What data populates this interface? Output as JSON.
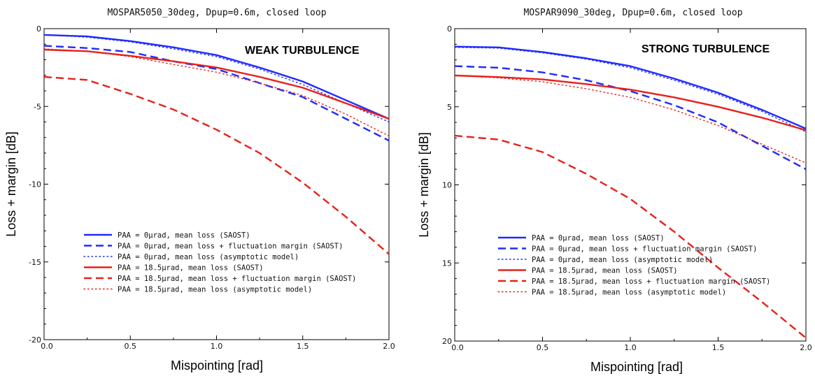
{
  "chart_data": [
    {
      "type": "line",
      "title": "MOSPAR5050_30deg, Dpup=0.6m,  closed loop",
      "xlabel": "Mispointing [rad]",
      "ylabel": "Loss + margin [dB]",
      "annotation": "WEAK TURBULENCE",
      "xlim": [
        0,
        2
      ],
      "ylim": [
        -20,
        0
      ],
      "xticks": [
        "0.0",
        "0.5",
        "1.0",
        "1.5",
        "2.0"
      ],
      "yticks": [
        "0",
        "-5",
        "-10",
        "-15",
        "-20"
      ],
      "grid": false,
      "legend_position": "lower-left",
      "x": [
        0,
        0.25,
        0.5,
        0.75,
        1.0,
        1.25,
        1.5,
        1.75,
        2.0
      ],
      "series": [
        {
          "name": "PAA = 0µrad, mean loss (SAOST)",
          "color": "#1f2bff",
          "style": "solid",
          "values": [
            -0.4,
            -0.5,
            -0.8,
            -1.2,
            -1.7,
            -2.5,
            -3.4,
            -4.6,
            -5.8
          ]
        },
        {
          "name": "PAA = 0µrad, mean loss + fluctuation margin (SAOST)",
          "color": "#1f2bff",
          "style": "dashed",
          "values": [
            -1.1,
            -1.25,
            -1.5,
            -2.1,
            -2.6,
            -3.5,
            -4.4,
            -5.8,
            -7.2
          ]
        },
        {
          "name": "PAA = 0µrad, mean loss (asymptotic model)",
          "color": "#1f2bff",
          "style": "dotted",
          "values": [
            -0.4,
            -0.55,
            -0.85,
            -1.3,
            -1.8,
            -2.6,
            -3.6,
            -4.8,
            -6.0
          ]
        },
        {
          "name": "PAA = 18.5µrad, mean loss (SAOST)",
          "color": "#e8201a",
          "style": "solid",
          "values": [
            -1.35,
            -1.45,
            -1.75,
            -2.1,
            -2.5,
            -3.1,
            -3.8,
            -4.8,
            -5.8
          ]
        },
        {
          "name": "PAA = 18.5µrad, mean loss + fluctuation margin (SAOST)",
          "color": "#e8201a",
          "style": "dashed",
          "values": [
            -3.1,
            -3.3,
            -4.2,
            -5.2,
            -6.5,
            -8.0,
            -9.9,
            -12.1,
            -14.5
          ]
        },
        {
          "name": "PAA = 18.5µrad, mean loss (asymptotic model)",
          "color": "#e8201a",
          "style": "dotted",
          "values": [
            -1.3,
            -1.45,
            -1.8,
            -2.3,
            -2.8,
            -3.5,
            -4.3,
            -5.5,
            -6.9
          ]
        }
      ]
    },
    {
      "type": "line",
      "title": "MOSPAR9090_30deg, Dpup=0.6m,  closed loop",
      "xlabel": "Mispointing [rad]",
      "ylabel": "Loss + margin [dB]",
      "annotation": "STRONG TURBULENCE",
      "xlim": [
        0,
        2
      ],
      "ylim": [
        -20,
        0
      ],
      "xticks": [
        "0.0",
        "0.5",
        "1.0",
        "1.5",
        "2.0"
      ],
      "yticks": [
        "0",
        "5",
        "10",
        "15",
        "20"
      ],
      "grid": false,
      "legend_position": "lower-left",
      "x": [
        0,
        0.25,
        0.5,
        0.75,
        1.0,
        1.25,
        1.5,
        1.75,
        2.0
      ],
      "series": [
        {
          "name": "PAA = 0µrad, mean loss (SAOST)",
          "color": "#1f2bff",
          "style": "solid",
          "values": [
            -1.15,
            -1.2,
            -1.5,
            -1.9,
            -2.4,
            -3.2,
            -4.1,
            -5.2,
            -6.4
          ]
        },
        {
          "name": "PAA = 0µrad, mean loss + fluctuation margin (SAOST)",
          "color": "#1f2bff",
          "style": "dashed",
          "values": [
            -2.4,
            -2.5,
            -2.8,
            -3.3,
            -4.0,
            -4.9,
            -6.0,
            -7.5,
            -9.0
          ]
        },
        {
          "name": "PAA = 0µrad, mean loss (asymptotic model)",
          "color": "#1f2bff",
          "style": "dotted",
          "values": [
            -1.2,
            -1.25,
            -1.55,
            -1.95,
            -2.5,
            -3.3,
            -4.2,
            -5.3,
            -6.6
          ]
        },
        {
          "name": "PAA = 18.5µrad, mean loss (SAOST)",
          "color": "#e8201a",
          "style": "solid",
          "values": [
            -3.0,
            -3.1,
            -3.25,
            -3.55,
            -3.9,
            -4.4,
            -5.0,
            -5.7,
            -6.5
          ]
        },
        {
          "name": "PAA = 18.5µrad, mean loss + fluctuation margin (SAOST)",
          "color": "#e8201a",
          "style": "dashed",
          "values": [
            -6.85,
            -7.1,
            -7.9,
            -9.3,
            -10.9,
            -13.0,
            -15.3,
            -17.5,
            -19.8
          ]
        },
        {
          "name": "PAA = 18.5µrad, mean loss (asymptotic model)",
          "color": "#e8201a",
          "style": "dotted",
          "values": [
            -3.0,
            -3.15,
            -3.4,
            -3.85,
            -4.4,
            -5.2,
            -6.2,
            -7.4,
            -8.6
          ]
        }
      ]
    }
  ]
}
